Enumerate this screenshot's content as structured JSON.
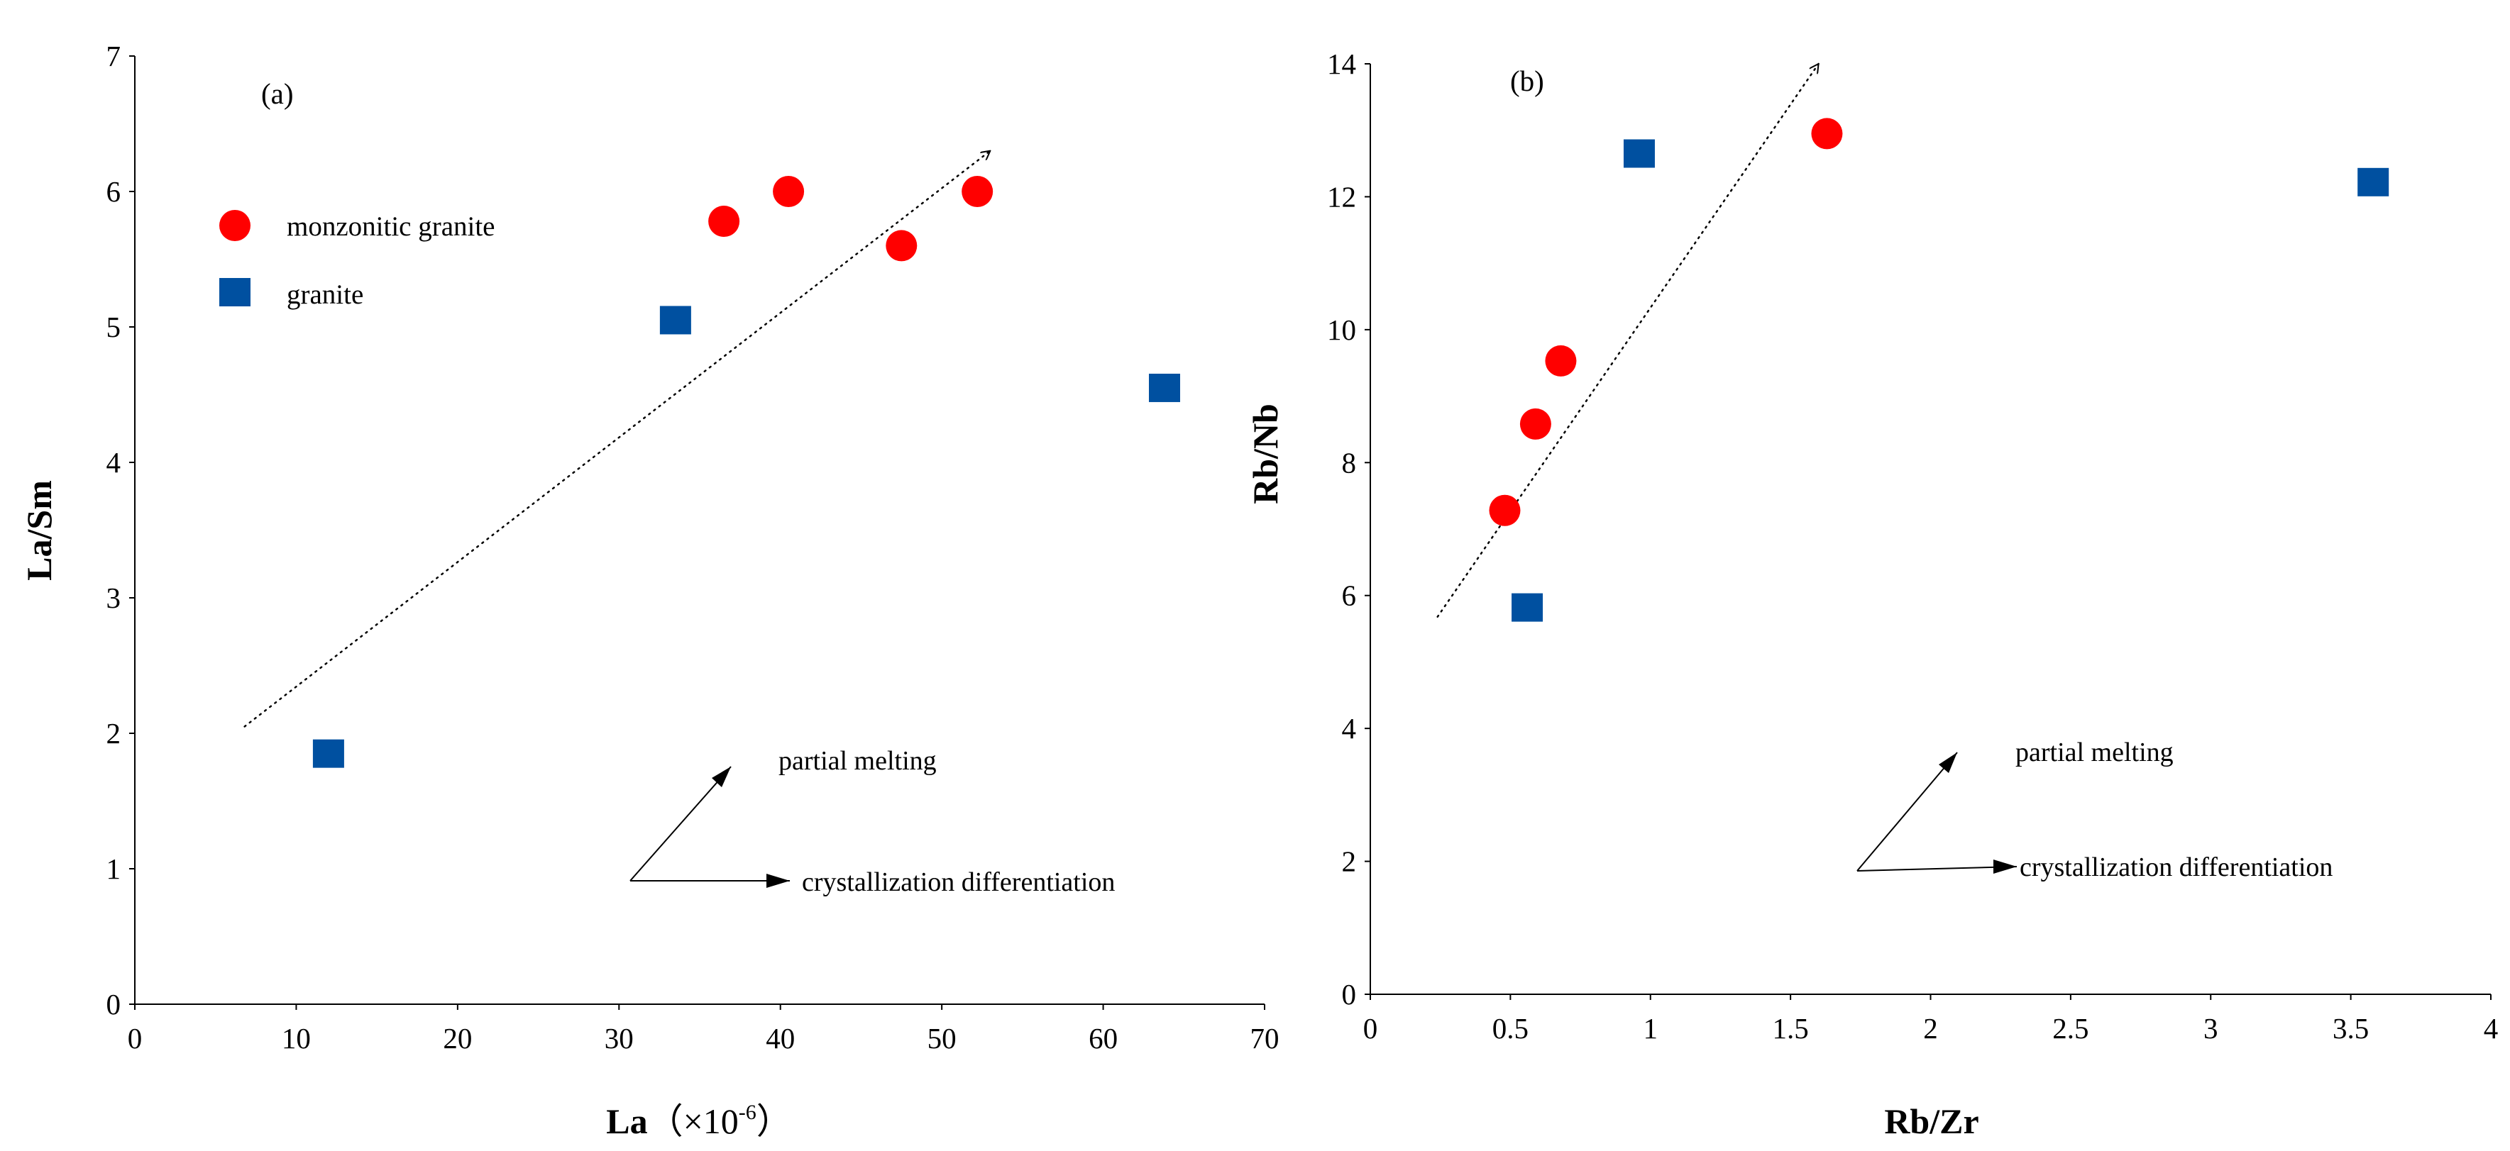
{
  "colors": {
    "monzonitic_granite": "#ff0000",
    "granite": "#0050a0",
    "axis": "#000000"
  },
  "legend": {
    "monzonitic_granite": "monzonitic granite",
    "granite": "granite"
  },
  "chart_data": [
    {
      "type": "scatter",
      "panel": "(a)",
      "xlabel_main": "La",
      "xlabel_unit": "（×10",
      "xlabel_exp": "-6",
      "xlabel_close": "）",
      "ylabel": "La/Sm",
      "xlim": [
        0,
        70
      ],
      "ylim": [
        0,
        7
      ],
      "xticks": [
        "0",
        "10",
        "20",
        "30",
        "40",
        "50",
        "60",
        "70"
      ],
      "yticks": [
        "0",
        "1",
        "2",
        "3",
        "4",
        "5",
        "6",
        "7"
      ],
      "grid": false,
      "legend_position": "upper-left",
      "series": [
        {
          "name": "monzonitic granite",
          "marker": "circle",
          "x": [
            36.5,
            40.5,
            47.5,
            52.2
          ],
          "y": [
            5.78,
            6.0,
            5.6,
            6.0
          ]
        },
        {
          "name": "granite",
          "marker": "square",
          "x": [
            12.0,
            33.5,
            63.8
          ],
          "y": [
            1.85,
            5.05,
            4.55
          ]
        }
      ],
      "trend_arrow": {
        "from": [
          6.8,
          2.05
        ],
        "to": [
          53,
          6.3
        ],
        "style": "dotted"
      },
      "annotations": {
        "up_arrow_label": "partial melting",
        "right_arrow_label": "crystallization differentiation"
      }
    },
    {
      "type": "scatter",
      "panel": "(b)",
      "xlabel": "Rb/Zr",
      "ylabel": "Rb/Nb",
      "xlim": [
        0,
        4
      ],
      "ylim": [
        0,
        14
      ],
      "xticks": [
        "0",
        "0.5",
        "1",
        "1.5",
        "2",
        "2.5",
        "3",
        "3.5",
        "4"
      ],
      "yticks": [
        "0",
        "2",
        "4",
        "6",
        "8",
        "10",
        "12",
        "14"
      ],
      "grid": false,
      "series": [
        {
          "name": "monzonitic granite",
          "marker": "circle",
          "x": [
            0.48,
            0.59,
            0.68,
            1.63
          ],
          "y": [
            7.28,
            8.58,
            9.53,
            12.95
          ]
        },
        {
          "name": "granite",
          "marker": "square",
          "x": [
            0.56,
            0.96,
            3.58
          ],
          "y": [
            5.82,
            12.65,
            12.22
          ]
        }
      ],
      "trend_arrow": {
        "from": [
          0.24,
          5.68
        ],
        "to": [
          1.6,
          14.0
        ],
        "style": "dotted"
      },
      "annotations": {
        "up_arrow_label": "partial melting",
        "right_arrow_label": "crystallization differentiation"
      }
    }
  ]
}
